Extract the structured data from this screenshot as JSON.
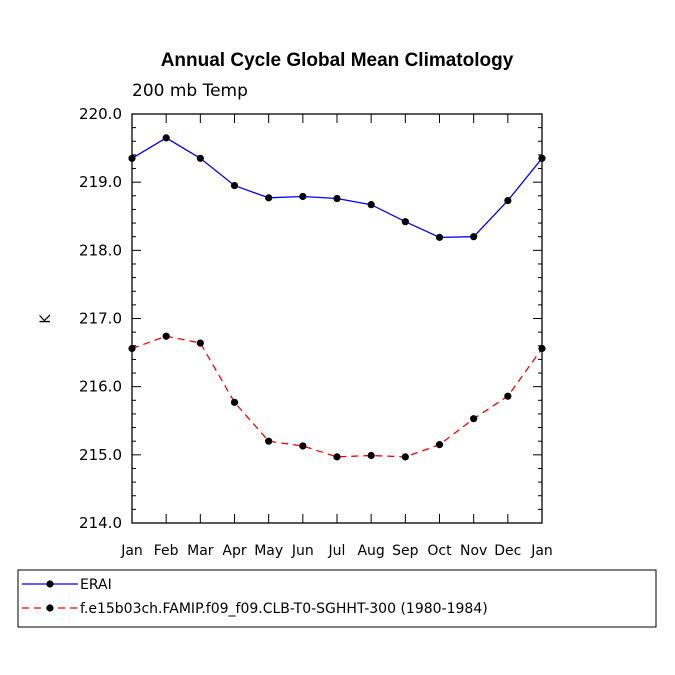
{
  "chart_data": {
    "type": "line",
    "title": "Annual Cycle Global Mean Climatology",
    "subtitle": "200 mb Temp",
    "xlabel": "",
    "ylabel": "K",
    "ylim": [
      214.0,
      220.0
    ],
    "yticks": [
      "214.0",
      "215.0",
      "216.0",
      "217.0",
      "218.0",
      "219.0",
      "220.0"
    ],
    "categories": [
      "Jan",
      "Feb",
      "Mar",
      "Apr",
      "May",
      "Jun",
      "Jul",
      "Aug",
      "Sep",
      "Oct",
      "Nov",
      "Dec",
      "Jan"
    ],
    "series": [
      {
        "name": "ERAI",
        "color": "#0000ff",
        "dash": "solid",
        "values": [
          219.35,
          219.65,
          219.35,
          218.95,
          218.77,
          218.79,
          218.76,
          218.67,
          218.42,
          218.19,
          218.2,
          218.73,
          219.35
        ]
      },
      {
        "name": "f.e15b03ch.FAMIP.f09_f09.CLB-T0-SGHHT-300 (1980-1984)",
        "color": "#ff0000",
        "dash": "dashed",
        "values": [
          216.56,
          216.74,
          216.64,
          215.77,
          215.2,
          215.13,
          214.97,
          214.99,
          214.97,
          215.15,
          215.53,
          215.86,
          216.56
        ]
      }
    ]
  }
}
